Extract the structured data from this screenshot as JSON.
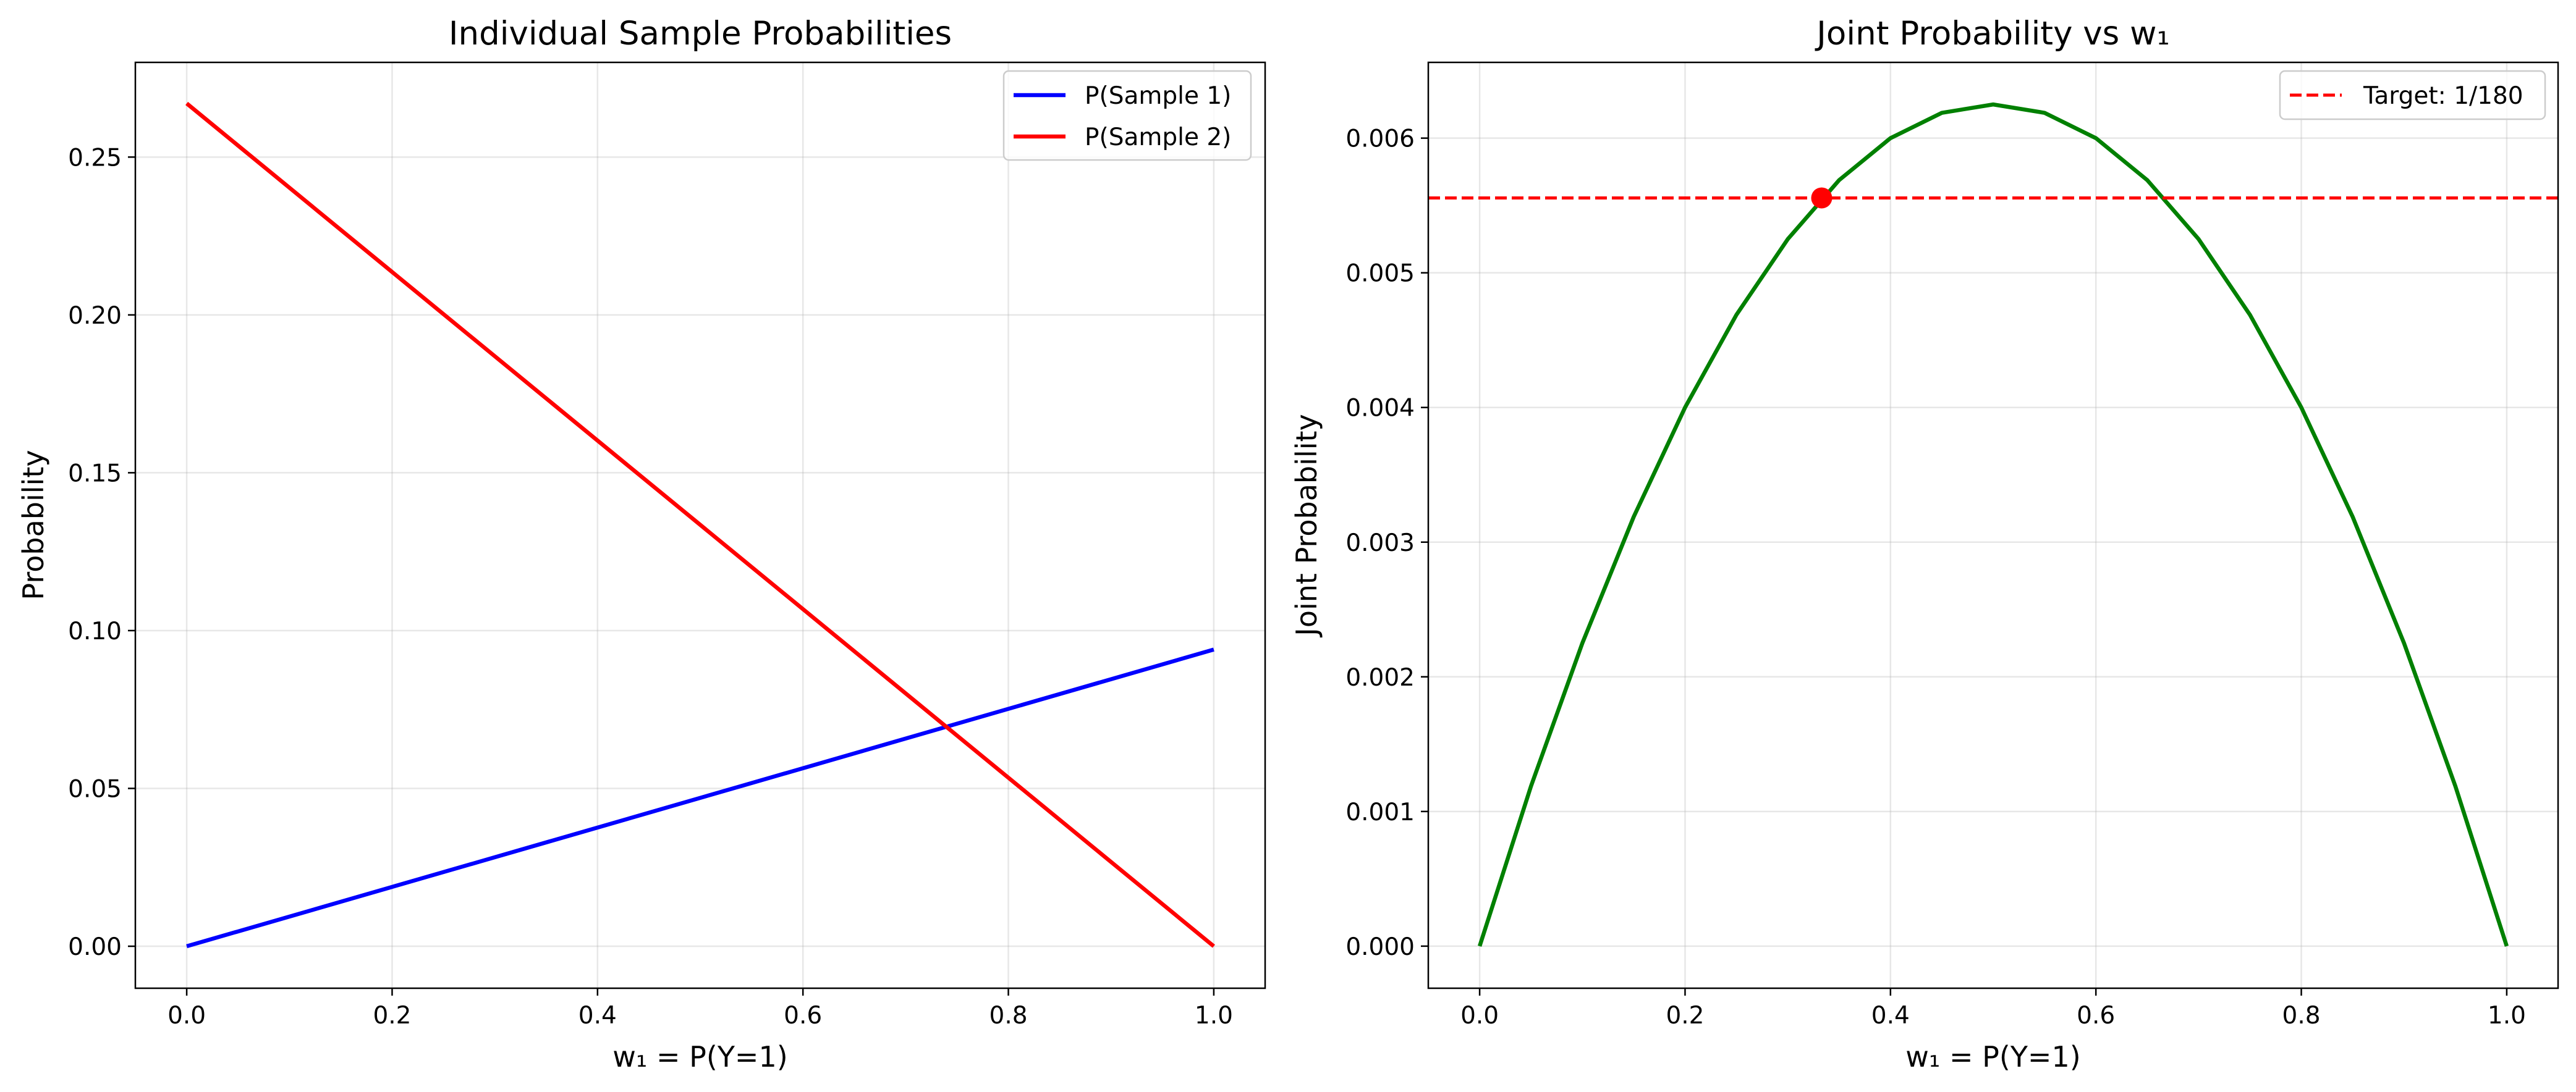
{
  "chart_data": [
    {
      "type": "line",
      "title": "Individual Sample Probabilities",
      "xlabel": "w₁ = P(Y=1)",
      "ylabel": "Probability",
      "xlim": [
        -0.05,
        1.05
      ],
      "ylim": [
        -0.0133,
        0.28
      ],
      "xticks": [
        0.0,
        0.2,
        0.4,
        0.6,
        0.8,
        1.0
      ],
      "xtick_labels": [
        "0.0",
        "0.2",
        "0.4",
        "0.6",
        "0.8",
        "1.0"
      ],
      "yticks": [
        0.0,
        0.05,
        0.1,
        0.15,
        0.2,
        0.25
      ],
      "ytick_labels": [
        "0.00",
        "0.05",
        "0.10",
        "0.15",
        "0.20",
        "0.25"
      ],
      "grid": true,
      "legend_position": "top-right",
      "series": [
        {
          "name": "P(Sample 1)",
          "color": "#0000ff",
          "linestyle": "solid",
          "x": [
            0.0,
            1.0
          ],
          "values": [
            0.0,
            0.094
          ]
        },
        {
          "name": "P(Sample 2)",
          "color": "#ff0000",
          "linestyle": "solid",
          "x": [
            0.0,
            1.0
          ],
          "values": [
            0.267,
            0.0
          ]
        }
      ]
    },
    {
      "type": "line",
      "title": "Joint Probability vs w₁",
      "xlabel": "w₁ = P(Y=1)",
      "ylabel": "Joint Probability",
      "xlim": [
        -0.05,
        1.05
      ],
      "ylim": [
        -0.0003125,
        0.0065625
      ],
      "xticks": [
        0.0,
        0.2,
        0.4,
        0.6,
        0.8,
        1.0
      ],
      "xtick_labels": [
        "0.0",
        "0.2",
        "0.4",
        "0.6",
        "0.8",
        "1.0"
      ],
      "yticks": [
        0.0,
        0.001,
        0.002,
        0.003,
        0.004,
        0.005,
        0.006
      ],
      "ytick_labels": [
        "0.000",
        "0.001",
        "0.002",
        "0.003",
        "0.004",
        "0.005",
        "0.006"
      ],
      "grid": true,
      "legend_position": "top-right",
      "series": [
        {
          "name": "",
          "color": "#008000",
          "linestyle": "solid",
          "x": [
            0.0,
            0.05,
            0.1,
            0.15,
            0.2,
            0.25,
            0.3,
            0.35,
            0.4,
            0.45,
            0.5,
            0.55,
            0.6,
            0.65,
            0.7,
            0.75,
            0.8,
            0.85,
            0.9,
            0.95,
            1.0
          ],
          "values": [
            0.0,
            0.001188,
            0.00225,
            0.003188,
            0.004,
            0.004688,
            0.00525,
            0.005688,
            0.006,
            0.006188,
            0.00625,
            0.006188,
            0.006,
            0.005688,
            0.00525,
            0.004688,
            0.004,
            0.003188,
            0.00225,
            0.001188,
            0.0
          ]
        },
        {
          "name": "Target: 1/180",
          "color": "#ff0000",
          "linestyle": "dashed",
          "type": "hline",
          "y": 0.005556
        }
      ],
      "points": [
        {
          "x": 0.333,
          "y": 0.005556,
          "color": "#ff0000"
        }
      ]
    }
  ]
}
